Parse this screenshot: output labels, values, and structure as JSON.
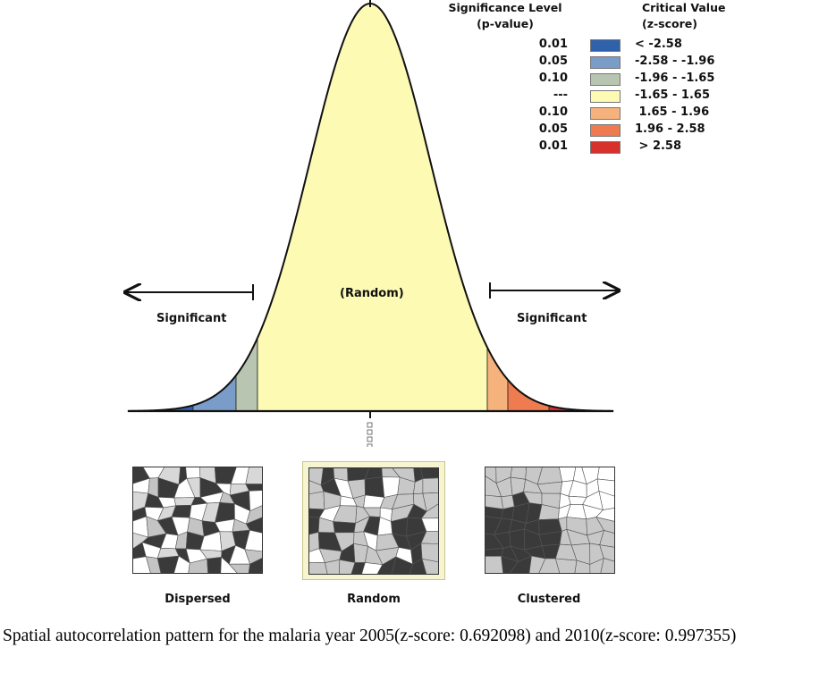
{
  "curve": {
    "center_label": "(Random)",
    "left_label": "Significant",
    "right_label": "Significant"
  },
  "legend": {
    "p_header_line1": "Significance Level",
    "p_header_line2": "(p-value)",
    "z_header_line1": "Critical Value",
    "z_header_line2": "(z-score)",
    "rows": [
      {
        "p": "0.01",
        "z": "< -2.58",
        "color": "#3062ab"
      },
      {
        "p": "0.05",
        "z": "-2.58 - -1.96",
        "color": "#7a9cc8"
      },
      {
        "p": "0.10",
        "z": "-1.96 - -1.65",
        "color": "#b8c5b1"
      },
      {
        "p": "---",
        "z": "-1.65 - 1.65",
        "color": "#fdfab4"
      },
      {
        "p": "0.10",
        "z": " 1.65 - 1.96",
        "color": "#f6b27c"
      },
      {
        "p": "0.05",
        "z": "1.96 - 2.58",
        "color": "#ef7b50"
      },
      {
        "p": "0.01",
        "z": " > 2.58",
        "color": "#d8302b"
      }
    ]
  },
  "maps": [
    {
      "label": "Dispersed"
    },
    {
      "label": "Random"
    },
    {
      "label": "Clustered"
    }
  ],
  "caption": "Spatial autocorrelation pattern for the malaria year 2005(z-score: 0.692098) and 2010(z-score: 0.997355)"
}
